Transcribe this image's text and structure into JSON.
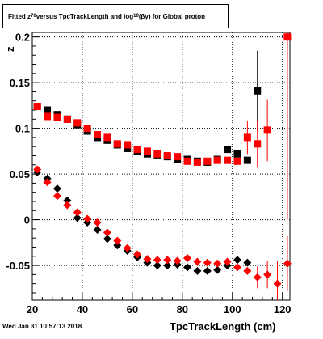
{
  "title_parts": {
    "pre": "Fitted  z",
    "sub1": "70",
    "mid": " versus TpcTrackLength and log",
    "sub2": "10",
    "post": "(βγ) for Global proton"
  },
  "footer": "Wed Jan 31 10:57:13 2018",
  "chart_data": {
    "type": "scatter",
    "title": "Fitted z70 versus TpcTrackLength and log10(βγ) for Global proton",
    "xlabel": "TpcTrackLength (cm)",
    "ylabel": "z",
    "xlim": [
      20,
      123
    ],
    "ylim": [
      -0.088,
      0.205
    ],
    "xticks": [
      20,
      40,
      60,
      80,
      100,
      120
    ],
    "yticks": [
      -0.05,
      0,
      0.05,
      0.1,
      0.15,
      0.2
    ],
    "ytick_labels": [
      "-0.05",
      "0",
      "0.05",
      "0.1",
      "0.15",
      "0.2"
    ],
    "grid": true,
    "series": [
      {
        "marker": "square",
        "color": "#000000",
        "points": [
          {
            "x": 22,
            "y": 0.124
          },
          {
            "x": 26,
            "y": 0.12
          },
          {
            "x": 30,
            "y": 0.115
          },
          {
            "x": 34,
            "y": 0.11
          },
          {
            "x": 38,
            "y": 0.104
          },
          {
            "x": 42,
            "y": 0.097
          },
          {
            "x": 46,
            "y": 0.09
          },
          {
            "x": 50,
            "y": 0.087
          },
          {
            "x": 54,
            "y": 0.082
          },
          {
            "x": 58,
            "y": 0.078
          },
          {
            "x": 62,
            "y": 0.075
          },
          {
            "x": 66,
            "y": 0.072
          },
          {
            "x": 70,
            "y": 0.071
          },
          {
            "x": 74,
            "y": 0.069
          },
          {
            "x": 78,
            "y": 0.066
          },
          {
            "x": 82,
            "y": 0.066
          },
          {
            "x": 86,
            "y": 0.064
          },
          {
            "x": 90,
            "y": 0.063
          },
          {
            "x": 94,
            "y": 0.066
          },
          {
            "x": 98,
            "y": 0.077
          },
          {
            "x": 102,
            "y": 0.072
          },
          {
            "x": 106,
            "y": 0.065
          },
          {
            "x": 110,
            "y": 0.141,
            "err": 0.044
          }
        ]
      },
      {
        "marker": "square",
        "color": "#ff0000",
        "points": [
          {
            "x": 22,
            "y": 0.124
          },
          {
            "x": 26,
            "y": 0.113
          },
          {
            "x": 30,
            "y": 0.112
          },
          {
            "x": 34,
            "y": 0.11
          },
          {
            "x": 38,
            "y": 0.106
          },
          {
            "x": 42,
            "y": 0.1
          },
          {
            "x": 46,
            "y": 0.093
          },
          {
            "x": 50,
            "y": 0.09
          },
          {
            "x": 54,
            "y": 0.083
          },
          {
            "x": 58,
            "y": 0.082
          },
          {
            "x": 62,
            "y": 0.077
          },
          {
            "x": 66,
            "y": 0.075
          },
          {
            "x": 70,
            "y": 0.072
          },
          {
            "x": 74,
            "y": 0.07
          },
          {
            "x": 78,
            "y": 0.069
          },
          {
            "x": 82,
            "y": 0.064
          },
          {
            "x": 86,
            "y": 0.063
          },
          {
            "x": 90,
            "y": 0.064
          },
          {
            "x": 94,
            "y": 0.065
          },
          {
            "x": 98,
            "y": 0.065
          },
          {
            "x": 102,
            "y": 0.064
          },
          {
            "x": 106,
            "y": 0.09,
            "err": 0.018
          },
          {
            "x": 110,
            "y": 0.083,
            "err": 0.026
          },
          {
            "x": 114,
            "y": 0.098,
            "err": 0.034
          },
          {
            "x": 122,
            "y": 0.2,
            "err": 0.2
          }
        ]
      },
      {
        "marker": "diamond",
        "color": "#000000",
        "points": [
          {
            "x": 22,
            "y": 0.052
          },
          {
            "x": 26,
            "y": 0.045
          },
          {
            "x": 30,
            "y": 0.034
          },
          {
            "x": 34,
            "y": 0.021
          },
          {
            "x": 38,
            "y": 0.002
          },
          {
            "x": 42,
            "y": -0.003
          },
          {
            "x": 46,
            "y": -0.011
          },
          {
            "x": 50,
            "y": -0.021
          },
          {
            "x": 54,
            "y": -0.028
          },
          {
            "x": 58,
            "y": -0.034
          },
          {
            "x": 62,
            "y": -0.041
          },
          {
            "x": 66,
            "y": -0.047
          },
          {
            "x": 70,
            "y": -0.05
          },
          {
            "x": 74,
            "y": -0.05
          },
          {
            "x": 78,
            "y": -0.049
          },
          {
            "x": 82,
            "y": -0.052
          },
          {
            "x": 86,
            "y": -0.056
          },
          {
            "x": 90,
            "y": -0.056
          },
          {
            "x": 94,
            "y": -0.055
          },
          {
            "x": 98,
            "y": -0.05
          },
          {
            "x": 102,
            "y": -0.044
          },
          {
            "x": 106,
            "y": -0.047
          }
        ]
      },
      {
        "marker": "diamond",
        "color": "#ff0000",
        "points": [
          {
            "x": 22,
            "y": 0.055
          },
          {
            "x": 26,
            "y": 0.041
          },
          {
            "x": 30,
            "y": 0.026
          },
          {
            "x": 34,
            "y": 0.016
          },
          {
            "x": 38,
            "y": 0.008
          },
          {
            "x": 42,
            "y": 0.001
          },
          {
            "x": 46,
            "y": -0.003
          },
          {
            "x": 50,
            "y": -0.014
          },
          {
            "x": 54,
            "y": -0.023
          },
          {
            "x": 58,
            "y": -0.031
          },
          {
            "x": 62,
            "y": -0.038
          },
          {
            "x": 66,
            "y": -0.043
          },
          {
            "x": 70,
            "y": -0.044
          },
          {
            "x": 74,
            "y": -0.044
          },
          {
            "x": 78,
            "y": -0.045
          },
          {
            "x": 82,
            "y": -0.042
          },
          {
            "x": 86,
            "y": -0.046
          },
          {
            "x": 90,
            "y": -0.047
          },
          {
            "x": 94,
            "y": -0.048
          },
          {
            "x": 98,
            "y": -0.046
          },
          {
            "x": 102,
            "y": -0.052
          },
          {
            "x": 106,
            "y": -0.056
          },
          {
            "x": 110,
            "y": -0.063,
            "err": 0.012
          },
          {
            "x": 114,
            "y": -0.06,
            "err": 0.015
          },
          {
            "x": 118,
            "y": -0.07,
            "err": 0.025
          },
          {
            "x": 122,
            "y": -0.048,
            "err": 0.03
          }
        ]
      }
    ]
  }
}
